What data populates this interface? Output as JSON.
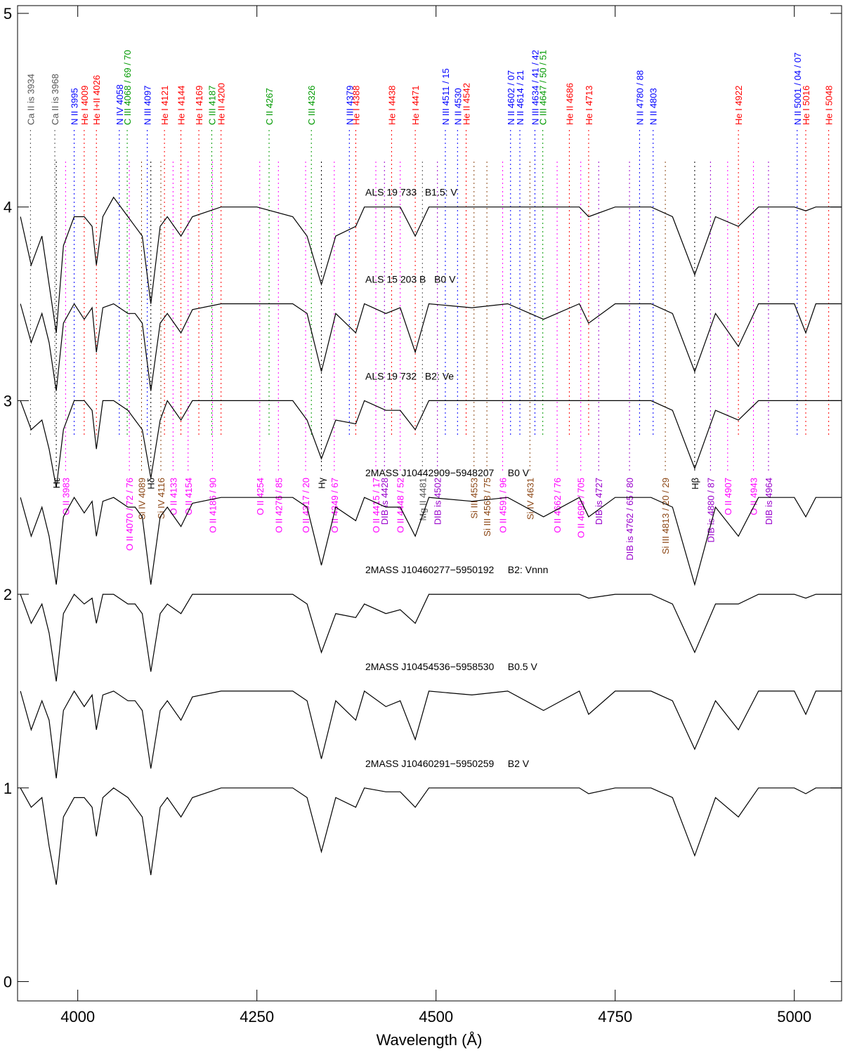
{
  "chart_data": {
    "type": "line",
    "x_label": "Wavelength (Å)",
    "xlim": [
      3916,
      5066
    ],
    "ylim": [
      -0.1,
      5.04
    ],
    "xticks": [
      4000,
      4250,
      4500,
      4750,
      5000
    ],
    "yticks": [
      0,
      1,
      2,
      3,
      4,
      5
    ],
    "x": [
      3920,
      3935,
      3950,
      3960,
      3970,
      3980,
      3995,
      4009,
      4020,
      4026,
      4035,
      4050,
      4070,
      4080,
      4090,
      4102,
      4115,
      4125,
      4144,
      4160,
      4200,
      4250,
      4300,
      4320,
      4340,
      4360,
      4388,
      4400,
      4430,
      4450,
      4471,
      4490,
      4550,
      4600,
      4650,
      4700,
      4713,
      4750,
      4800,
      4830,
      4861,
      4890,
      4922,
      4950,
      5000,
      5016,
      5030,
      5066
    ],
    "series": [
      {
        "name": "ALS 19 733   B1.5: V",
        "color": "#000000",
        "values": [
          3.95,
          3.7,
          3.85,
          3.6,
          3.35,
          3.8,
          3.95,
          3.95,
          3.9,
          3.7,
          3.95,
          4.05,
          3.95,
          3.9,
          3.85,
          3.5,
          3.9,
          3.95,
          3.85,
          3.95,
          4.0,
          4.0,
          3.95,
          3.85,
          3.6,
          3.85,
          3.9,
          4.0,
          4.0,
          4.0,
          3.85,
          4.0,
          4.0,
          4.0,
          4.0,
          4.0,
          3.95,
          4.0,
          4.0,
          3.95,
          3.65,
          3.95,
          3.9,
          4.0,
          4.0,
          3.98,
          4.0,
          4.0
        ]
      },
      {
        "name": "ALS 15 203 B   B0 V",
        "color": "#000000",
        "values": [
          3.5,
          3.3,
          3.45,
          3.3,
          3.05,
          3.4,
          3.5,
          3.42,
          3.48,
          3.25,
          3.48,
          3.5,
          3.45,
          3.45,
          3.4,
          3.05,
          3.4,
          3.45,
          3.35,
          3.47,
          3.5,
          3.5,
          3.5,
          3.45,
          3.15,
          3.45,
          3.35,
          3.5,
          3.45,
          3.48,
          3.25,
          3.5,
          3.48,
          3.5,
          3.42,
          3.5,
          3.4,
          3.5,
          3.5,
          3.45,
          3.15,
          3.45,
          3.28,
          3.5,
          3.5,
          3.35,
          3.5,
          3.5
        ]
      },
      {
        "name": "ALS 19 732   B2: Ve",
        "color": "#000000",
        "values": [
          3.0,
          2.85,
          2.9,
          2.75,
          2.55,
          2.85,
          3.0,
          3.0,
          2.95,
          2.75,
          3.0,
          3.0,
          2.95,
          2.9,
          2.85,
          2.6,
          2.9,
          3.0,
          2.9,
          3.0,
          3.0,
          3.0,
          3.0,
          2.9,
          2.7,
          2.9,
          2.88,
          3.0,
          2.95,
          2.95,
          2.85,
          3.0,
          3.0,
          3.0,
          3.0,
          3.0,
          3.0,
          3.0,
          3.0,
          2.95,
          2.65,
          2.95,
          2.9,
          3.0,
          3.0,
          3.0,
          3.0,
          3.0
        ]
      },
      {
        "name": "2MASS J10442909−5948207     B0 V",
        "color": "#000000",
        "values": [
          2.5,
          2.3,
          2.45,
          2.3,
          2.05,
          2.4,
          2.5,
          2.42,
          2.48,
          2.3,
          2.48,
          2.5,
          2.45,
          2.45,
          2.4,
          2.05,
          2.4,
          2.45,
          2.35,
          2.47,
          2.5,
          2.5,
          2.5,
          2.45,
          2.15,
          2.45,
          2.38,
          2.5,
          2.45,
          2.45,
          2.3,
          2.5,
          2.48,
          2.5,
          2.4,
          2.5,
          2.4,
          2.5,
          2.5,
          2.45,
          2.05,
          2.45,
          2.3,
          2.5,
          2.5,
          2.4,
          2.5,
          2.5
        ]
      },
      {
        "name": "2MASS J10460277−5950192     B2: Vnnn",
        "color": "#000000",
        "values": [
          2.0,
          1.85,
          1.95,
          1.8,
          1.55,
          1.9,
          2.0,
          1.95,
          1.98,
          1.85,
          2.0,
          2.0,
          1.95,
          1.95,
          1.9,
          1.6,
          1.9,
          1.95,
          1.9,
          2.0,
          2.0,
          2.0,
          2.0,
          1.95,
          1.7,
          1.9,
          1.88,
          1.95,
          1.9,
          1.92,
          1.85,
          2.0,
          2.0,
          2.0,
          2.0,
          2.0,
          1.98,
          2.0,
          2.0,
          1.95,
          1.7,
          1.95,
          1.95,
          2.0,
          2.0,
          1.98,
          2.0,
          2.0
        ]
      },
      {
        "name": "2MASS J10454536−5958530     B0.5 V",
        "color": "#000000",
        "values": [
          1.5,
          1.3,
          1.45,
          1.35,
          1.05,
          1.4,
          1.5,
          1.42,
          1.48,
          1.3,
          1.48,
          1.5,
          1.45,
          1.45,
          1.4,
          1.1,
          1.4,
          1.45,
          1.35,
          1.47,
          1.5,
          1.5,
          1.5,
          1.45,
          1.15,
          1.45,
          1.35,
          1.5,
          1.42,
          1.45,
          1.25,
          1.5,
          1.48,
          1.5,
          1.4,
          1.5,
          1.38,
          1.5,
          1.5,
          1.45,
          1.2,
          1.45,
          1.3,
          1.5,
          1.5,
          1.38,
          1.5,
          1.5
        ]
      },
      {
        "name": "2MASS J10460291−5950259     B2 V",
        "color": "#000000",
        "values": [
          1.0,
          0.9,
          0.95,
          0.7,
          0.5,
          0.85,
          0.95,
          0.95,
          0.9,
          0.75,
          0.95,
          1.0,
          0.95,
          0.9,
          0.85,
          0.55,
          0.9,
          0.95,
          0.85,
          0.95,
          1.0,
          1.0,
          1.0,
          0.95,
          0.67,
          0.95,
          0.9,
          1.0,
          0.98,
          0.98,
          0.9,
          1.0,
          1.0,
          1.0,
          1.0,
          1.0,
          0.97,
          1.0,
          1.0,
          0.95,
          0.65,
          0.95,
          0.85,
          1.0,
          1.0,
          0.97,
          1.0,
          1.0
        ]
      }
    ],
    "top_lines": [
      {
        "label": "Ca II is 3934",
        "wavelength": 3934,
        "color": "#555555"
      },
      {
        "label": "Ca II is 3968",
        "wavelength": 3968,
        "color": "#555555"
      },
      {
        "label": "N II 3995",
        "wavelength": 3995,
        "color": "#0000ff"
      },
      {
        "label": "He I 4009",
        "wavelength": 4009,
        "color": "#ff0000"
      },
      {
        "label": "He I+II 4026",
        "wavelength": 4026,
        "color": "#ff0000"
      },
      {
        "label": "N IV 4058",
        "wavelength": 4058,
        "color": "#0000ff"
      },
      {
        "label": "C III 4068 / 69 / 70",
        "wavelength": 4069,
        "color": "#009900"
      },
      {
        "label": "N III 4097",
        "wavelength": 4097,
        "color": "#0000ff"
      },
      {
        "label": "He I 4121",
        "wavelength": 4121,
        "color": "#ff0000"
      },
      {
        "label": "He I 4144",
        "wavelength": 4144,
        "color": "#ff0000"
      },
      {
        "label": "He I 4169",
        "wavelength": 4169,
        "color": "#ff0000"
      },
      {
        "label": "C III 4187",
        "wavelength": 4187,
        "color": "#009900"
      },
      {
        "label": "He II 4200",
        "wavelength": 4200,
        "color": "#ff0000"
      },
      {
        "label": "C II 4267",
        "wavelength": 4267,
        "color": "#009900"
      },
      {
        "label": "C III 4326",
        "wavelength": 4326,
        "color": "#009900"
      },
      {
        "label": "N III 4379",
        "wavelength": 4379,
        "color": "#0000ff"
      },
      {
        "label": "He I 4388",
        "wavelength": 4388,
        "color": "#ff0000"
      },
      {
        "label": "He I 4438",
        "wavelength": 4438,
        "color": "#ff0000"
      },
      {
        "label": "He I 4471",
        "wavelength": 4471,
        "color": "#ff0000"
      },
      {
        "label": "N III 4511 / 15",
        "wavelength": 4513,
        "color": "#0000ff"
      },
      {
        "label": "N II 4530",
        "wavelength": 4530,
        "color": "#0000ff"
      },
      {
        "label": "He II 4542",
        "wavelength": 4542,
        "color": "#ff0000"
      },
      {
        "label": "N II 4602 / 07",
        "wavelength": 4604,
        "color": "#0000ff"
      },
      {
        "label": "N II 4614 / 21",
        "wavelength": 4617,
        "color": "#0000ff"
      },
      {
        "label": "N III 4634 / 41 / 42",
        "wavelength": 4638,
        "color": "#0000ff"
      },
      {
        "label": "C III 4647 / 50 / 51",
        "wavelength": 4649,
        "color": "#009900"
      },
      {
        "label": "He II 4686",
        "wavelength": 4686,
        "color": "#ff0000"
      },
      {
        "label": "He I 4713",
        "wavelength": 4713,
        "color": "#ff0000"
      },
      {
        "label": "N II 4780 / 88",
        "wavelength": 4784,
        "color": "#0000ff"
      },
      {
        "label": "N II 4803",
        "wavelength": 4803,
        "color": "#0000ff"
      },
      {
        "label": "He I 4922",
        "wavelength": 4922,
        "color": "#ff0000"
      },
      {
        "label": "N II 5001 / 04 / 07",
        "wavelength": 5004,
        "color": "#0000ff"
      },
      {
        "label": "He I 5016",
        "wavelength": 5016,
        "color": "#ff0000"
      },
      {
        "label": "He I 5048",
        "wavelength": 5048,
        "color": "#ff0000"
      }
    ],
    "bottom_lines": [
      {
        "label": "Hε",
        "wavelength": 3970,
        "color": "#000000"
      },
      {
        "label": "O II 3983",
        "wavelength": 3983,
        "color": "#ff00ff"
      },
      {
        "label": "O II 4070 / 72 / 76",
        "wavelength": 4072,
        "color": "#ff00ff"
      },
      {
        "label": "Si IV 4089",
        "wavelength": 4089,
        "color": "#8b4513"
      },
      {
        "label": "Hδ",
        "wavelength": 4102,
        "color": "#000000"
      },
      {
        "label": "Si IV 4116",
        "wavelength": 4116,
        "color": "#8b4513"
      },
      {
        "label": "O II 4133",
        "wavelength": 4133,
        "color": "#ff00ff"
      },
      {
        "label": "O II 4154",
        "wavelength": 4154,
        "color": "#ff00ff"
      },
      {
        "label": "O II 4186 / 90",
        "wavelength": 4188,
        "color": "#ff00ff"
      },
      {
        "label": "O II 4254",
        "wavelength": 4254,
        "color": "#ff00ff"
      },
      {
        "label": "O II 4276 / 85",
        "wavelength": 4280,
        "color": "#ff00ff"
      },
      {
        "label": "O II 4317 / 20",
        "wavelength": 4318,
        "color": "#ff00ff"
      },
      {
        "label": "Hγ",
        "wavelength": 4340,
        "color": "#000000"
      },
      {
        "label": "O II 4349 / 67",
        "wavelength": 4358,
        "color": "#ff00ff"
      },
      {
        "label": "O II 4415 / 17",
        "wavelength": 4416,
        "color": "#ff00ff"
      },
      {
        "label": "DIB is 4428",
        "wavelength": 4428,
        "color": "#9900cc"
      },
      {
        "label": "O II 4448 / 52",
        "wavelength": 4450,
        "color": "#ff00ff"
      },
      {
        "label": "Mg II 4481",
        "wavelength": 4481,
        "color": "#555555"
      },
      {
        "label": "DIB is 4502",
        "wavelength": 4502,
        "color": "#9900cc"
      },
      {
        "label": "Si III 4553",
        "wavelength": 4553,
        "color": "#8b4513"
      },
      {
        "label": "Si III 4568 / 75",
        "wavelength": 4571,
        "color": "#8b4513"
      },
      {
        "label": "O II 4591 / 96",
        "wavelength": 4593,
        "color": "#ff00ff"
      },
      {
        "label": "Si IV 4631",
        "wavelength": 4631,
        "color": "#8b4513"
      },
      {
        "label": "O II 4662 / 76",
        "wavelength": 4669,
        "color": "#ff00ff"
      },
      {
        "label": "O II 4699 / 705",
        "wavelength": 4702,
        "color": "#ff00ff"
      },
      {
        "label": "DIB is 4727",
        "wavelength": 4727,
        "color": "#9900cc"
      },
      {
        "label": "DIB is 4762 / 65 / 80",
        "wavelength": 4770,
        "color": "#9900cc"
      },
      {
        "label": "Si III 4813 / 20 / 29",
        "wavelength": 4820,
        "color": "#8b4513"
      },
      {
        "label": "Hβ",
        "wavelength": 4861,
        "color": "#000000"
      },
      {
        "label": "DIB is 4880 / 87",
        "wavelength": 4883,
        "color": "#9900cc"
      },
      {
        "label": "O II 4907",
        "wavelength": 4907,
        "color": "#ff00ff"
      },
      {
        "label": "O II 4943",
        "wavelength": 4943,
        "color": "#ff00ff"
      },
      {
        "label": "DIB is 4964",
        "wavelength": 4964,
        "color": "#9900cc"
      }
    ]
  }
}
